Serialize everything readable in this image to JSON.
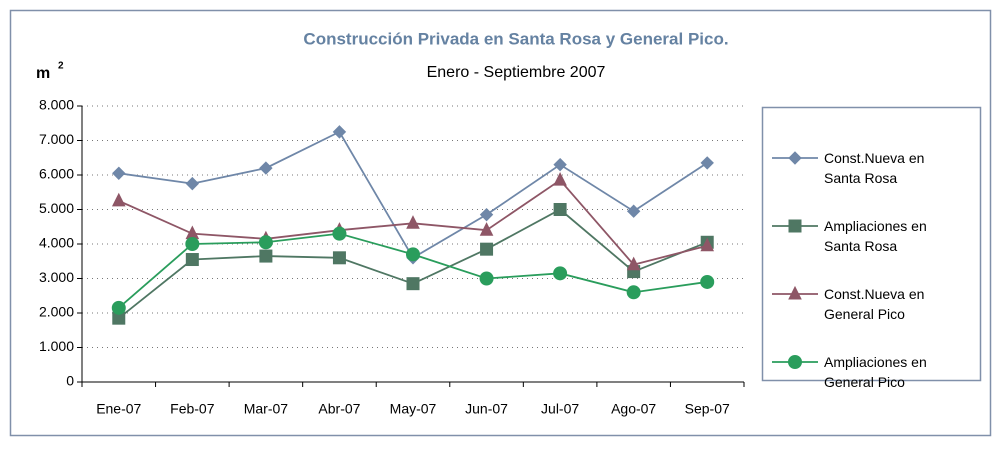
{
  "chart_data": {
    "type": "line",
    "title": "Construcción Privada en Santa Rosa y General Pico.",
    "subtitle": "Enero - Septiembre 2007",
    "ylabel": "m",
    "ylabel_superscript": "2",
    "categories": [
      "Ene-07",
      "Feb-07",
      "Mar-07",
      "Abr-07",
      "May-07",
      "Jun-07",
      "Jul-07",
      "Ago-07",
      "Sep-07"
    ],
    "series": [
      {
        "name": "Const.Nueva en Santa Rosa",
        "color": "#6f87a8",
        "marker": "diamond",
        "values": [
          6050,
          5750,
          6200,
          7250,
          3600,
          4850,
          6300,
          4950,
          6350
        ]
      },
      {
        "name": "Ampliaciones en Santa Rosa",
        "color": "#4f7763",
        "marker": "square",
        "values": [
          1850,
          3550,
          3650,
          3600,
          2850,
          3850,
          5000,
          3200,
          4050
        ]
      },
      {
        "name": "Const.Nueva en General Pico",
        "color": "#8e5666",
        "marker": "triangle",
        "values": [
          5250,
          4300,
          4150,
          4400,
          4600,
          4400,
          5850,
          3400,
          3950
        ]
      },
      {
        "name": "Ampliaciones en General Pico",
        "color": "#2a9d5c",
        "marker": "circle",
        "values": [
          2150,
          4000,
          4050,
          4300,
          3700,
          3000,
          3150,
          2600,
          2900
        ]
      }
    ],
    "ylim": [
      0,
      8000
    ],
    "yticks": [
      0,
      {
        "value": 1000,
        "label": "1.000"
      },
      {
        "value": 2000,
        "label": "2.000"
      },
      {
        "value": 3000,
        "label": "3.000"
      },
      {
        "value": 4000,
        "label": "4.000"
      },
      {
        "value": 5000,
        "label": "5.000"
      },
      {
        "value": 6000,
        "label": "6.000"
      },
      {
        "value": 7000,
        "label": "7.000"
      },
      {
        "value": 8000,
        "label": "8.000"
      }
    ],
    "grid": true,
    "legend": "right"
  }
}
